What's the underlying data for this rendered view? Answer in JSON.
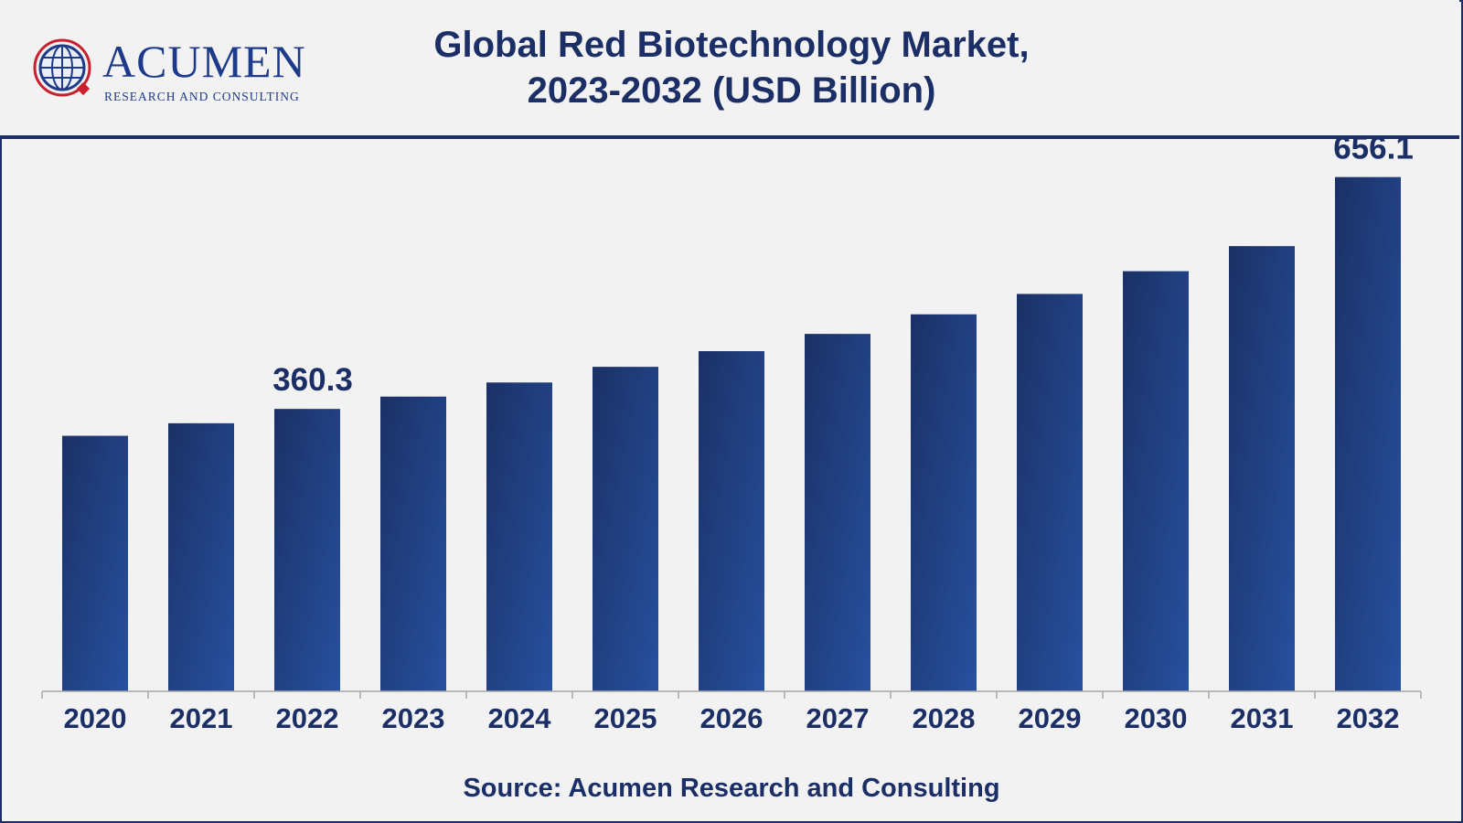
{
  "brand": {
    "name": "ACUMEN",
    "tagline": "RESEARCH AND CONSULTING"
  },
  "header": {
    "title_line1": "Global Red Biotechnology Market,",
    "title_line2": "2023-2032 (USD Billion)"
  },
  "colors": {
    "navy": "#1b2f66",
    "bar_dark": "#1b3166",
    "bar_light": "#27509f"
  },
  "chart_data": {
    "type": "bar",
    "title": "Global Red Biotechnology Market, 2023-2032 (USD Billion)",
    "categories": [
      "2020",
      "2021",
      "2022",
      "2023",
      "2024",
      "2025",
      "2026",
      "2027",
      "2028",
      "2029",
      "2030",
      "2031",
      "2032"
    ],
    "values": [
      326,
      342,
      360.3,
      376,
      394,
      414,
      434,
      456,
      481,
      507,
      536,
      568,
      656.1
    ],
    "value_labels": [
      {
        "category": "2022",
        "text": "360.3"
      },
      {
        "category": "2032",
        "text": "656.1"
      }
    ],
    "ylim": [
      0,
      700
    ],
    "grid": false
  },
  "footer": {
    "source": "Source: Acumen Research and Consulting"
  }
}
